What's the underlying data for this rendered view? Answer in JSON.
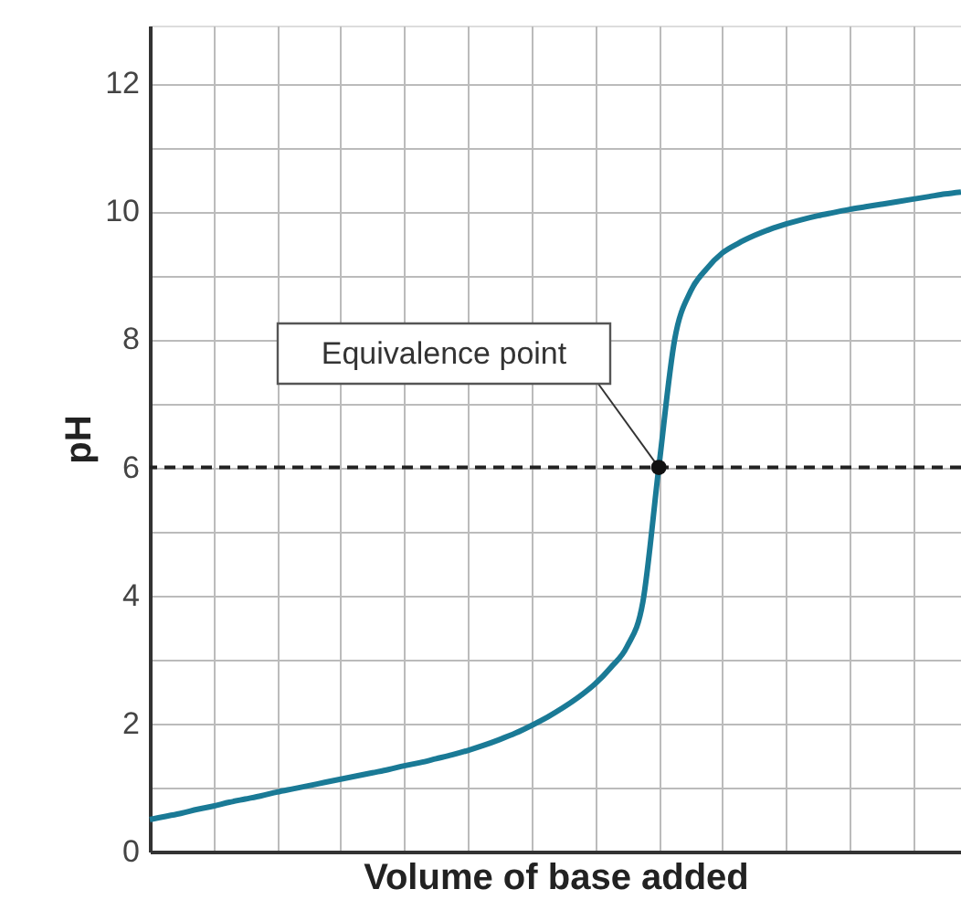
{
  "chart_data": {
    "type": "line",
    "xlabel": "Volume of base added",
    "ylabel": "pH",
    "categories": [
      null,
      null,
      null,
      null,
      null,
      null,
      null,
      null,
      null,
      null,
      null,
      null,
      null,
      null,
      null,
      null,
      null,
      null,
      null,
      null,
      null,
      null,
      null,
      null,
      null,
      null,
      null,
      null,
      null,
      null,
      null,
      null,
      null,
      null,
      null,
      null,
      null,
      null,
      null,
      null,
      null,
      null,
      null,
      null,
      null,
      null,
      null,
      null,
      null,
      null,
      null,
      null
    ],
    "series": [
      {
        "color": "#1a7a96",
        "values": [
          0.5,
          0.55,
          0.6,
          0.66,
          0.71,
          0.77,
          0.82,
          0.87,
          0.93,
          0.98,
          1.03,
          1.08,
          1.13,
          1.18,
          1.23,
          1.28,
          1.34,
          1.39,
          1.45,
          1.51,
          1.58,
          1.66,
          1.75,
          1.85,
          1.97,
          2.1,
          2.25,
          2.42,
          2.62,
          2.88,
          3.2,
          3.9,
          6,
          8.0,
          8.75,
          9.1,
          9.35,
          9.5,
          9.62,
          9.72,
          9.8,
          9.87,
          9.93,
          9.98,
          10.03,
          10.07,
          10.11,
          10.15,
          10.19,
          10.23,
          10.27,
          10.3
        ]
      }
    ],
    "ylim": [
      0,
      12.9
    ],
    "yticks": [
      0,
      {
        "value": 1,
        "label": null
      },
      2,
      {
        "value": 3,
        "label": null
      },
      4,
      {
        "value": 5,
        "label": null
      },
      6,
      {
        "value": 7,
        "label": null
      },
      8,
      {
        "value": 9,
        "label": null
      },
      10,
      {
        "value": 11,
        "label": null
      },
      12
    ],
    "ref_lines": [
      {
        "axis": "y",
        "value": 6,
        "line_style": "dashed",
        "color": "#222222"
      }
    ],
    "annotations": [
      "Equivalence point"
    ],
    "grid": true,
    "tick_labels": "y",
    "marker": "none",
    "line_style": "solid"
  }
}
